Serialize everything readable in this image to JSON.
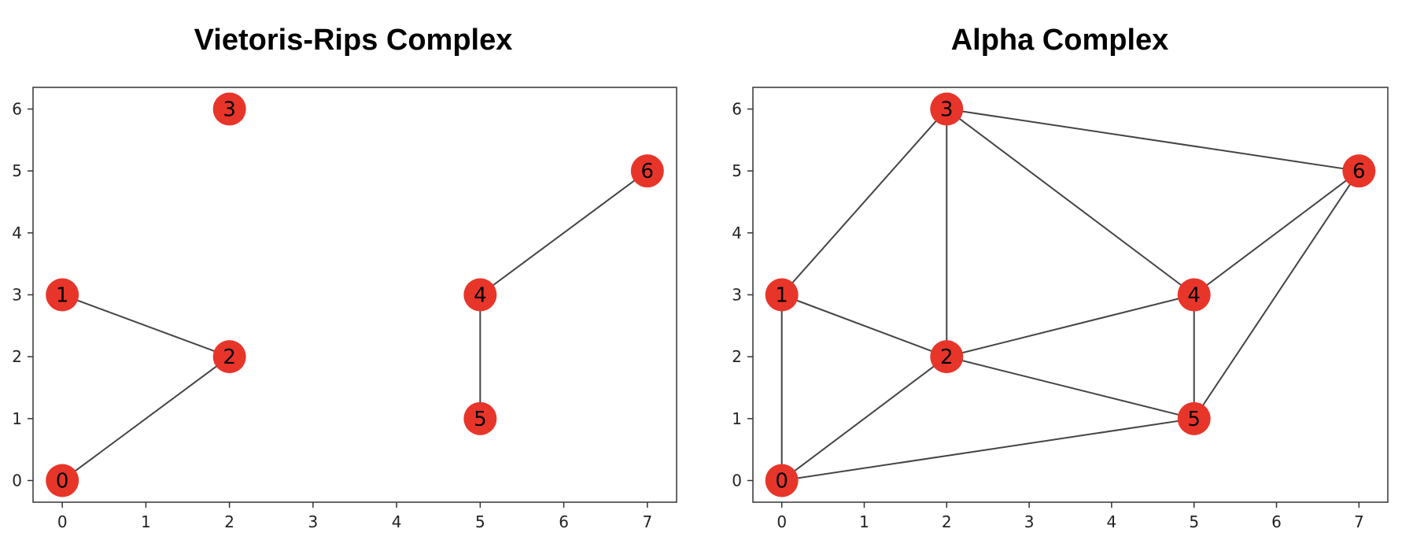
{
  "chart_data": [
    {
      "type": "graph",
      "title": "Vietoris-Rips Complex",
      "xlabel": "",
      "ylabel": "",
      "xlim": [
        -0.35,
        7.35
      ],
      "ylim": [
        -0.35,
        6.35
      ],
      "xticks": [
        0,
        1,
        2,
        3,
        4,
        5,
        6,
        7
      ],
      "yticks": [
        0,
        1,
        2,
        3,
        4,
        5,
        6
      ],
      "grid": false,
      "node_color": "#e8352a",
      "edge_color": "#444444",
      "nodes": [
        {
          "id": "0",
          "x": 0,
          "y": 0
        },
        {
          "id": "1",
          "x": 0,
          "y": 3
        },
        {
          "id": "2",
          "x": 2,
          "y": 2
        },
        {
          "id": "3",
          "x": 2,
          "y": 6
        },
        {
          "id": "4",
          "x": 5,
          "y": 3
        },
        {
          "id": "5",
          "x": 5,
          "y": 1
        },
        {
          "id": "6",
          "x": 7,
          "y": 5
        }
      ],
      "edges": [
        [
          "1",
          "2"
        ],
        [
          "0",
          "2"
        ],
        [
          "4",
          "6"
        ],
        [
          "4",
          "5"
        ]
      ]
    },
    {
      "type": "graph",
      "title": "Alpha Complex",
      "xlabel": "",
      "ylabel": "",
      "xlim": [
        -0.35,
        7.35
      ],
      "ylim": [
        -0.35,
        6.35
      ],
      "xticks": [
        0,
        1,
        2,
        3,
        4,
        5,
        6,
        7
      ],
      "yticks": [
        0,
        1,
        2,
        3,
        4,
        5,
        6
      ],
      "grid": false,
      "node_color": "#e8352a",
      "edge_color": "#444444",
      "nodes": [
        {
          "id": "0",
          "x": 0,
          "y": 0
        },
        {
          "id": "1",
          "x": 0,
          "y": 3
        },
        {
          "id": "2",
          "x": 2,
          "y": 2
        },
        {
          "id": "3",
          "x": 2,
          "y": 6
        },
        {
          "id": "4",
          "x": 5,
          "y": 3
        },
        {
          "id": "5",
          "x": 5,
          "y": 1
        },
        {
          "id": "6",
          "x": 7,
          "y": 5
        }
      ],
      "edges": [
        [
          "0",
          "1"
        ],
        [
          "1",
          "3"
        ],
        [
          "1",
          "2"
        ],
        [
          "0",
          "2"
        ],
        [
          "0",
          "5"
        ],
        [
          "2",
          "3"
        ],
        [
          "2",
          "4"
        ],
        [
          "2",
          "5"
        ],
        [
          "3",
          "4"
        ],
        [
          "3",
          "6"
        ],
        [
          "4",
          "6"
        ],
        [
          "4",
          "5"
        ],
        [
          "5",
          "6"
        ]
      ]
    }
  ]
}
